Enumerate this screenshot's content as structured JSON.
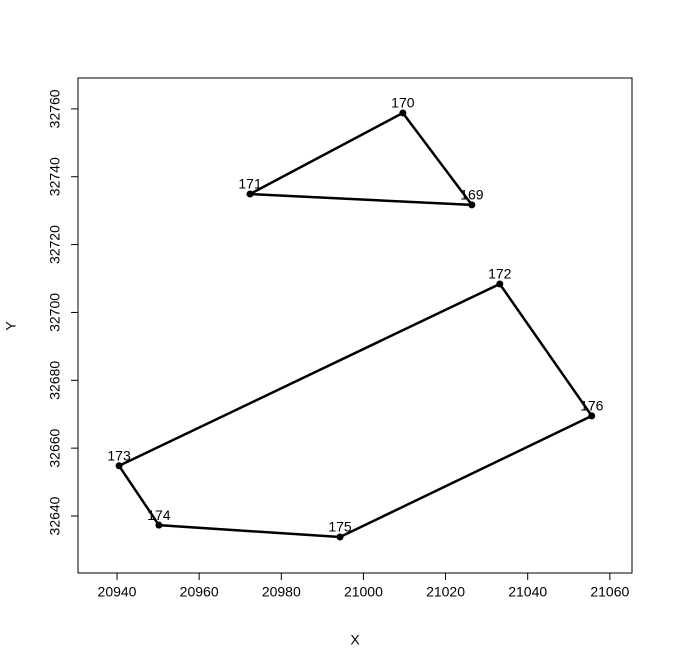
{
  "chart_data": {
    "type": "polygon",
    "xlabel": "X",
    "ylabel": "Y",
    "color": "#000000",
    "xlim": [
      20930.5,
      21065.4
    ],
    "ylim": [
      32623.2,
      32769.1
    ],
    "xticks": [
      20940,
      20960,
      20980,
      21000,
      21020,
      21040,
      21060
    ],
    "yticks": [
      32640,
      32660,
      32680,
      32700,
      32720,
      32740,
      32760
    ],
    "series": [
      {
        "labels": [
          "169",
          "170",
          "171"
        ],
        "x": [
          21026.4,
          21009.6,
          20972.4
        ],
        "values": [
          32731.7,
          32758.8,
          32734.9
        ]
      },
      {
        "labels": [
          "172",
          "176",
          "175",
          "174",
          "173"
        ],
        "x": [
          21033.2,
          21055.6,
          20994.3,
          20950.2,
          20940.5
        ],
        "values": [
          32708.4,
          32669.5,
          32633.8,
          32637.3,
          32654.8
        ]
      }
    ]
  }
}
